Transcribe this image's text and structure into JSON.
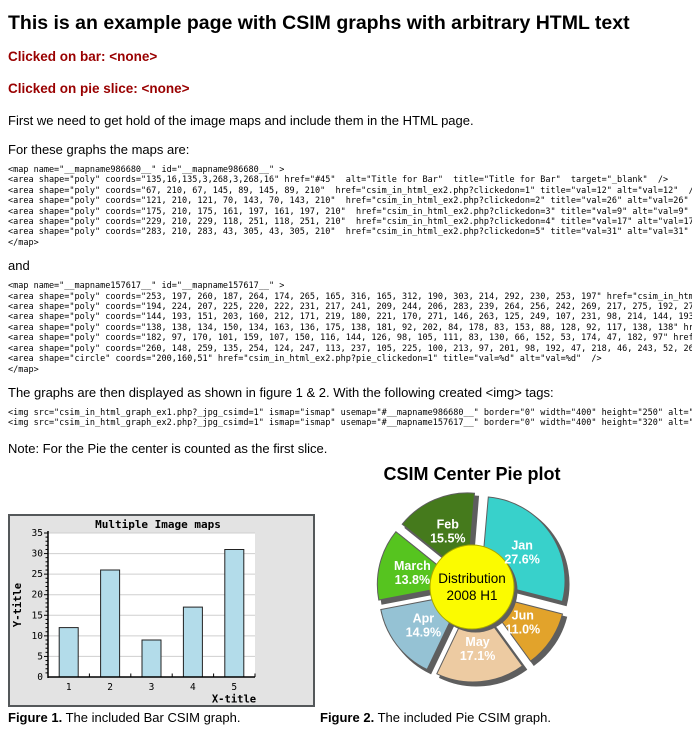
{
  "page": {
    "title": "This is an example page with CSIM graphs with arbitrary HTML text",
    "clicked_bar": "Clicked on bar: <none>",
    "clicked_pie": "Clicked on pie slice: <none>",
    "intro": "First we need to get hold of the image maps and include them in the HTML page.",
    "maps_intro": "For these graphs the maps are:",
    "and_text": "and",
    "figures_text": "The graphs are then displayed as shown in figure 1 & 2. With the following created <img> tags:",
    "note": "Note: For the Pie the center is counted as the first slice."
  },
  "code": {
    "map1": [
      "<map name=\"__mapname986680__\" id=\"__mapname986680__\" >",
      "<area shape=\"poly\" coords=\"135,16,135,3,268,3,268,16\" href=\"#45\"  alt=\"Title for Bar\"  title=\"Title for Bar\"  target=\"_blank\"  />",
      "<area shape=\"poly\" coords=\"67, 210, 67, 145, 89, 145, 89, 210\"  href=\"csim_in_html_ex2.php?clickedon=1\" title=\"val=12\" alt=\"val=12\"  />",
      "<area shape=\"poly\" coords=\"121, 210, 121, 70, 143, 70, 143, 210\"  href=\"csim_in_html_ex2.php?clickedon=2\" title=\"val=26\" alt=\"val=26\"  />",
      "<area shape=\"poly\" coords=\"175, 210, 175, 161, 197, 161, 197, 210\"  href=\"csim_in_html_ex2.php?clickedon=3\" title=\"val=9\" alt=\"val=9\"  />",
      "<area shape=\"poly\" coords=\"229, 210, 229, 118, 251, 118, 251, 210\"  href=\"csim_in_html_ex2.php?clickedon=4\" title=\"val=17\" alt=\"val=17\"  />",
      "<area shape=\"poly\" coords=\"283, 210, 283, 43, 305, 43, 305, 210\"  href=\"csim_in_html_ex2.php?clickedon=5\" title=\"val=31\" alt=\"val=31\"  />",
      "</map>"
    ],
    "map2": [
      "<map name=\"__mapname157617__\" id=\"__mapname157617__\" >",
      "<area shape=\"poly\" coords=\"253, 197, 260, 187, 264, 174, 265, 165, 316, 165, 312, 190, 303, 214, 292, 230, 253, 197\" href=\"csim_in_html_ex2.php?pie_cli",
      "<area shape=\"poly\" coords=\"194, 224, 207, 225, 220, 222, 231, 217, 241, 209, 244, 206, 283, 239, 264, 256, 242, 269, 217, 275, 192, 275, 184, 274, 194,",
      "<area shape=\"poly\" coords=\"144, 193, 151, 203, 160, 212, 171, 219, 180, 221, 170, 271, 146, 263, 125, 249, 107, 231, 98, 214, 144, 193\" href=\"csim_in_h",
      "<area shape=\"poly\" coords=\"138, 138, 134, 150, 134, 163, 136, 175, 138, 181, 92, 202, 84, 178, 83, 153, 88, 128, 92, 117, 138, 138\" href=\"csim_in_html_",
      "<area shape=\"poly\" coords=\"182, 97, 170, 101, 159, 107, 150, 116, 144, 126, 98, 105, 111, 83, 130, 66, 152, 53, 174, 47, 182, 97\" href=\"csim_in_html_ex",
      "<area shape=\"poly\" coords=\"260, 148, 259, 135, 254, 124, 247, 113, 237, 105, 225, 100, 213, 97, 201, 98, 192, 47, 218, 46, 243, 52, 266, 63, 285, 80, 2",
      "<area shape=\"circle\" coords=\"200,160,51\" href=\"csim_in_html_ex2.php?pie_clickedon=1\" title=\"val=%d\" alt=\"val=%d\"  />",
      "</map>"
    ],
    "img_tags": [
      "<img src=\"csim_in_html_graph_ex1.php?_jpg_csimd=1\" ismap=\"ismap\" usemap=\"#__mapname986680__\" border=\"0\" width=\"400\" height=\"250\" alt=\"\" />",
      "<img src=\"csim_in_html_graph_ex2.php?_jpg_csimd=1\" ismap=\"ismap\" usemap=\"#__mapname157617__\" border=\"0\" width=\"400\" height=\"320\" alt=\"\" />"
    ]
  },
  "captions": {
    "fig1_label": "Figure 1.",
    "fig1_text": " The included Bar CSIM graph.",
    "fig2_label": "Figure 2.",
    "fig2_text": " The included Pie CSIM graph."
  },
  "colors": {
    "clicked_text": "#990000",
    "shadow": "#5E5E5E"
  },
  "chart_data": [
    {
      "type": "bar",
      "title": "Multiple Image maps",
      "categories": [
        "1",
        "2",
        "3",
        "4",
        "5"
      ],
      "values": [
        12,
        26,
        9,
        17,
        31
      ],
      "xlabel": "X-title",
      "ylabel": "Y-title",
      "ylim": [
        0,
        35
      ],
      "ytick_step": 5,
      "grid": true,
      "legend_position": "none",
      "bar_color": "#B3DCEA",
      "bar_border": "#222222",
      "bg_color": "#E3E3E3",
      "plot_bg": "#FFFFFF",
      "grid_color": "#CFCFCF"
    },
    {
      "type": "pie",
      "title": "CSIM Center Pie plot",
      "slices": [
        {
          "label": "Jan",
          "pct": 27.6,
          "color": "#38D1CB"
        },
        {
          "label": "Feb",
          "pct": 15.5,
          "color": "#457A1C"
        },
        {
          "label": "March",
          "pct": 13.8,
          "color": "#56C41F"
        },
        {
          "label": "Apr",
          "pct": 14.9,
          "color": "#95C2D4"
        },
        {
          "label": "May",
          "pct": 17.1,
          "color": "#EDCBA2"
        },
        {
          "label": "Jun",
          "pct": 11.0,
          "color": "#E2A32B"
        }
      ],
      "direction": "counterclockwise",
      "start_angle_deg": 5,
      "center_label": [
        "Distribution",
        "2008 H1"
      ],
      "center_color": "#FBFB00",
      "center_border": "#A8A800",
      "shadow_color": "#5E5E5E",
      "label_color": "#FFFFFF"
    }
  ]
}
